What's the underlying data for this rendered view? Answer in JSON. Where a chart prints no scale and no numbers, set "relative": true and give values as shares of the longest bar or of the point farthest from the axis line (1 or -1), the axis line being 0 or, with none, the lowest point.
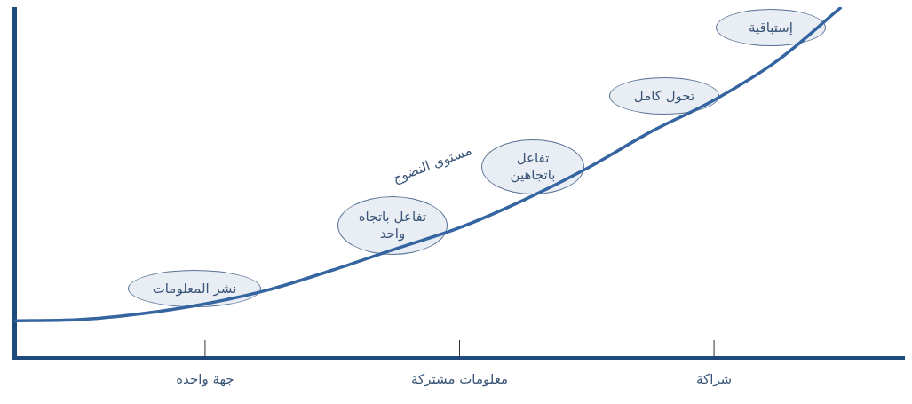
{
  "chart_data": {
    "type": "line",
    "relative": true,
    "ylabel": "مستوى النضوج",
    "categories": [
      null,
      null,
      null,
      "جهة واحده",
      null,
      null,
      null,
      "معلومات مشتركة",
      null,
      null,
      null,
      "شراكة",
      null,
      null,
      null
    ],
    "series": [
      {
        "color": "#3565a0",
        "values": [
          0.106,
          0.109,
          0.126,
          0.154,
          0.194,
          0.25,
          0.311,
          0.371,
          0.449,
          0.54,
          0.644,
          0.735,
          0.848,
          1,
          null
        ]
      }
    ],
    "annotations": [
      "نشر المعلومات",
      "تفاعل باتجاه واحد",
      "تفاعل باتجاهين",
      "تحول كامل",
      "إستباقية"
    ],
    "grid": false,
    "legend": false,
    "marker": "none",
    "line_style": "solid"
  }
}
